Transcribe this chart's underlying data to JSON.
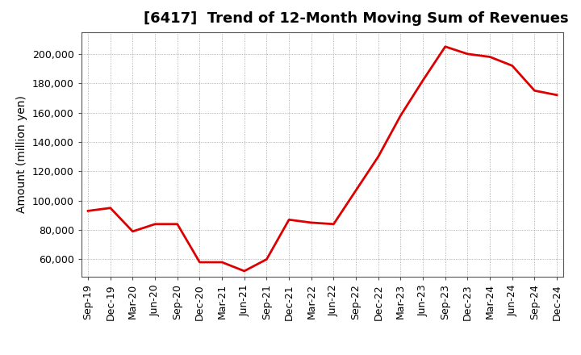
{
  "title": "[6417]  Trend of 12-Month Moving Sum of Revenues",
  "ylabel": "Amount (million yen)",
  "line_color": "#dd0000",
  "background_color": "#ffffff",
  "plot_bg_color": "#ffffff",
  "grid_color": "#999999",
  "x_labels": [
    "Sep-19",
    "Dec-19",
    "Mar-20",
    "Jun-20",
    "Sep-20",
    "Dec-20",
    "Mar-21",
    "Jun-21",
    "Sep-21",
    "Dec-21",
    "Mar-22",
    "Jun-22",
    "Sep-22",
    "Dec-22",
    "Mar-23",
    "Jun-23",
    "Sep-23",
    "Dec-23",
    "Mar-24",
    "Jun-24",
    "Sep-24",
    "Dec-24"
  ],
  "y_values": [
    93000,
    95000,
    79000,
    84000,
    84000,
    58000,
    58000,
    52000,
    60000,
    87000,
    85000,
    84000,
    107000,
    130000,
    158000,
    182000,
    205000,
    200000,
    198000,
    192000,
    175000,
    172000
  ],
  "ylim": [
    48000,
    215000
  ],
  "yticks": [
    60000,
    80000,
    100000,
    120000,
    140000,
    160000,
    180000,
    200000
  ],
  "title_fontsize": 13,
  "ylabel_fontsize": 10,
  "tick_fontsize": 9,
  "line_width": 2.0,
  "figsize": [
    7.2,
    4.4
  ],
  "dpi": 100
}
